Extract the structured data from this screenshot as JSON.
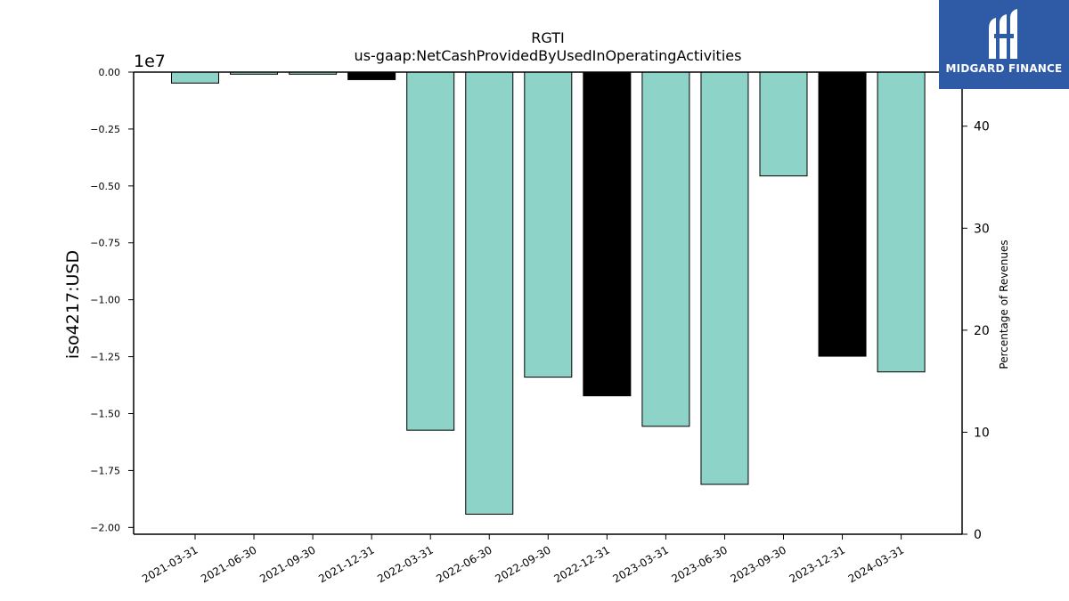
{
  "brand": {
    "name": "MIDGARD FINANCE",
    "color": "#2f5aa6"
  },
  "chart_data": {
    "type": "bar",
    "title": "RGTI",
    "subtitle": "us-gaap:NetCashProvidedByUsedInOperatingActivities",
    "ylabel": "iso4217:USD",
    "y_offset_label": "1e7",
    "y2label": "Percentage of Revenues",
    "categories": [
      "2021-03-31",
      "2021-06-30",
      "2021-09-30",
      "2021-12-31",
      "2022-03-31",
      "2022-06-30",
      "2022-09-30",
      "2022-12-31",
      "2023-03-31",
      "2023-06-30",
      "2023-09-30",
      "2023-12-31",
      "2024-03-31"
    ],
    "values": [
      -480000,
      -90000,
      -90000,
      -330000,
      -15730000,
      -19420000,
      -13400000,
      -14220000,
      -15560000,
      -18110000,
      -4560000,
      -12480000,
      -13170000
    ],
    "bar_colors": [
      "#8dd3c7",
      "#8dd3c7",
      "#8dd3c7",
      "#000000",
      "#8dd3c7",
      "#8dd3c7",
      "#8dd3c7",
      "#000000",
      "#8dd3c7",
      "#8dd3c7",
      "#8dd3c7",
      "#000000",
      "#8dd3c7"
    ],
    "ylim": [
      -20300000,
      0
    ],
    "yticks": [
      0,
      -2500000,
      -5000000,
      -7500000,
      -10000000,
      -12500000,
      -15000000,
      -17500000,
      -20000000
    ],
    "ytick_labels": [
      "0.00",
      "−0.25",
      "−0.50",
      "−0.75",
      "−1.00",
      "−1.25",
      "−1.50",
      "−1.75",
      "−2.00"
    ],
    "y2lim": [
      0,
      45.3
    ],
    "y2ticks": [
      0,
      10,
      20,
      30,
      40
    ],
    "y2tick_labels": [
      "0",
      "10",
      "20",
      "30",
      "40"
    ],
    "grid": false,
    "legend": "none"
  }
}
